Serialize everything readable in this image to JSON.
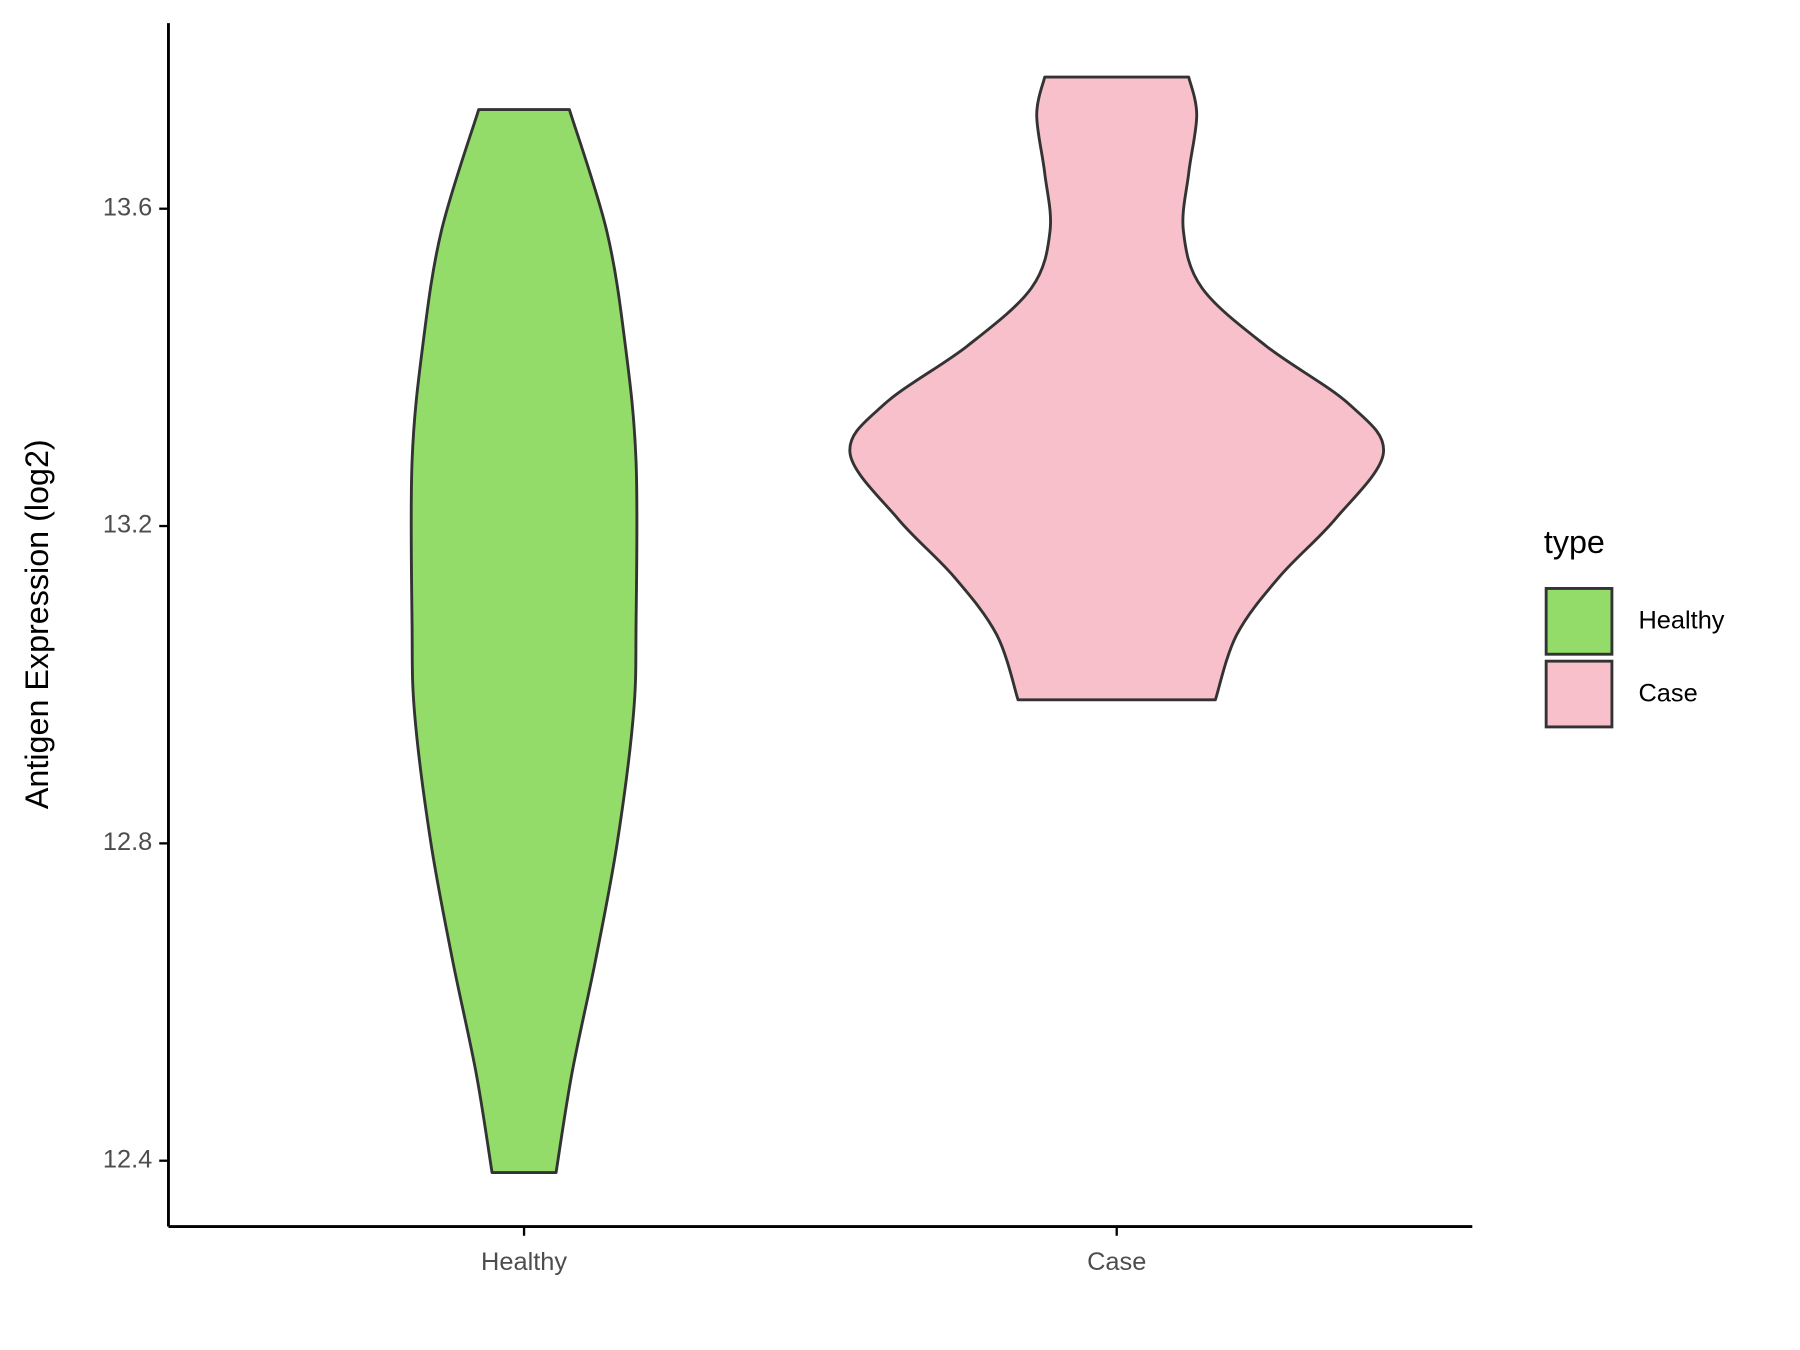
{
  "chart_data": {
    "type": "violin",
    "y_label": "Antigen Expression (log2)",
    "categories": [
      "Healthy",
      "Case"
    ],
    "legend_title": "type",
    "legend_position": "right",
    "ylim": [
      12.317,
      13.834
    ],
    "yticks": [
      12.4,
      12.8,
      13.2,
      13.6
    ],
    "series": [
      {
        "name": "Healthy",
        "color": "#93dc6a",
        "y": [
          13.725,
          13.572,
          13.427,
          13.281,
          13.078,
          12.962,
          12.802,
          12.656,
          12.511,
          12.385
        ],
        "width": [
          0.17,
          0.31,
          0.38,
          0.42,
          0.42,
          0.41,
          0.35,
          0.27,
          0.18,
          0.12
        ]
      },
      {
        "name": "Case",
        "color": "#f7c0cb",
        "y": [
          13.766,
          13.718,
          13.645,
          13.572,
          13.5,
          13.427,
          13.354,
          13.292,
          13.209,
          13.136,
          13.063,
          12.981
        ],
        "width": [
          0.27,
          0.3,
          0.27,
          0.25,
          0.32,
          0.56,
          0.87,
          1.0,
          0.82,
          0.61,
          0.45,
          0.37
        ]
      }
    ]
  }
}
